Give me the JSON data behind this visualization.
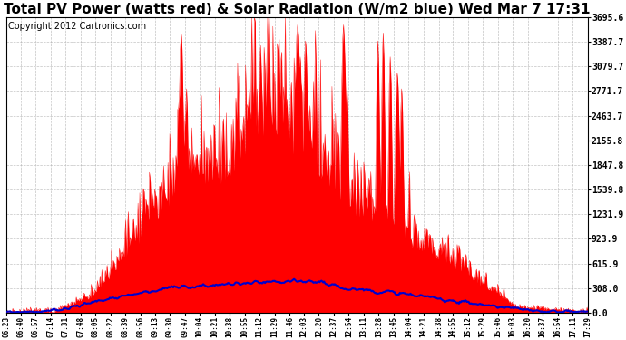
{
  "title": "Total PV Power (watts red) & Solar Radiation (W/m2 blue) Wed Mar 7 17:31",
  "copyright": "Copyright 2012 Cartronics.com",
  "ylim": [
    0,
    3695.6
  ],
  "yticks": [
    0.0,
    308.0,
    615.9,
    923.9,
    1231.9,
    1539.8,
    1847.8,
    2155.8,
    2463.7,
    2771.7,
    3079.7,
    3387.7,
    3695.6
  ],
  "xtick_labels": [
    "06:23",
    "06:40",
    "06:57",
    "07:14",
    "07:31",
    "07:48",
    "08:05",
    "08:22",
    "08:39",
    "08:56",
    "09:13",
    "09:30",
    "09:47",
    "10:04",
    "10:21",
    "10:38",
    "10:55",
    "11:12",
    "11:29",
    "11:46",
    "12:03",
    "12:20",
    "12:37",
    "12:54",
    "13:11",
    "13:28",
    "13:45",
    "14:04",
    "14:21",
    "14:38",
    "14:55",
    "15:12",
    "15:29",
    "15:46",
    "16:03",
    "16:20",
    "16:37",
    "16:54",
    "17:11",
    "17:29"
  ],
  "background_color": "#ffffff",
  "plot_bg_color": "#ffffff",
  "grid_color": "#aaaaaa",
  "red_color": "#ff0000",
  "blue_color": "#0000cc",
  "title_fontsize": 11,
  "copyright_fontsize": 7
}
